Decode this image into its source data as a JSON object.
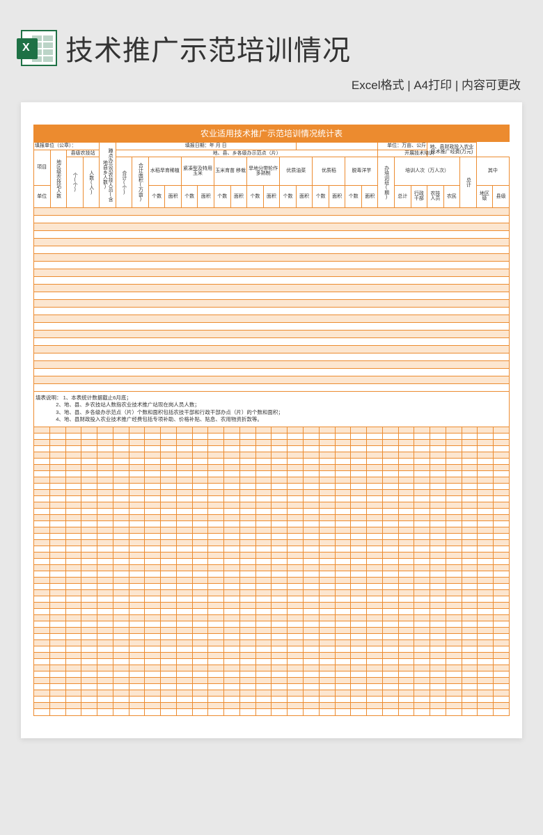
{
  "page": {
    "main_title": "技术推广示范培训情况",
    "subtitle": "Excel格式 | A4打印 | 内容可更改",
    "sheet_title": "农业适用技术推广示范培训情况统计表"
  },
  "colors": {
    "accent": "#ec8b2f",
    "alt_row": "#fce6d0",
    "page_bg": "#e8e8e8",
    "excel_green": "#1e7145",
    "text": "#333333"
  },
  "meta": {
    "fill_unit_label": "填报单位（公章）：",
    "fill_date_label": "填报日期：年 月 日",
    "unit_label": "单位：万亩、公斤"
  },
  "headers": {
    "r1": {
      "project": "项目",
      "county_station": "县级农技站",
      "town_station": "乡镇农技站",
      "demo_staff": "蹲点办示范农技人员(含地县乡人数)",
      "demo_points": "地、县、乡各级办示范点（片）",
      "training": "开展技术培训",
      "finance": "地、县财政投入农业技术推广经费(万元)"
    },
    "r2": {
      "region_staff": "地区级农技站人数",
      "count": "个(个)",
      "people": "人数(人)",
      "total": "合计",
      "total_count": "合计(个)",
      "total_area": "合计面积(万亩)",
      "rice": "水稻旱育稀植",
      "corn_compact": "紧凑型及特用玉米",
      "corn_seed": "玉米育苗 移栽",
      "drybelt": "旱地分带轮作多熟制",
      "veggie": "优质油菜",
      "quality_rice": "优质稻",
      "potato": "脱毒洋芋",
      "class": "办培训班(期)",
      "trainees": "培训人次（万人次）",
      "total_sum": "总计",
      "among": "其中"
    },
    "r3": {
      "n": "个数",
      "area": "面积",
      "all": "总计",
      "admin": "行政干部",
      "tech": "农技人员",
      "farmer": "农民",
      "region": "地区级",
      "county": "县级"
    },
    "unit_row": "单位"
  },
  "notes": {
    "label": "填表说明：",
    "n1": "1、本表统计数据截止6月底；",
    "n2": "2、地、县、乡农技站人数指农业技术推广站现在岗人员人数；",
    "n3": "3、地、县、乡各级办示范点（片）个数和面积包括农技干部和行政干部办点（片）的个数和面积；",
    "n4": "4、地、县财政投入农业技术推广经费包括专项补助、价格补贴、贴息、农用物资折款等。"
  },
  "layout": {
    "data_row_count": 24,
    "grid_row_count": 46,
    "grid_col_count": 30
  }
}
